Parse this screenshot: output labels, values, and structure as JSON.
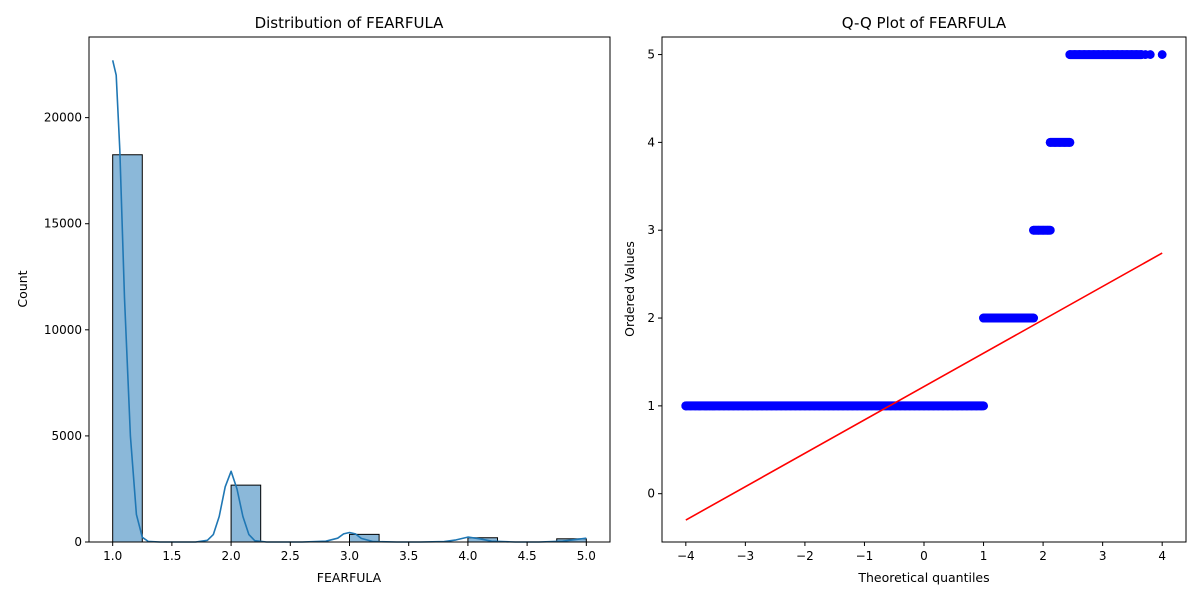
{
  "chart_data": [
    {
      "type": "bar",
      "subtype": "histogram with kde",
      "title": "Distribution of FEARFULA",
      "xlabel": "FEARFULA",
      "ylabel": "Count",
      "xlim": [
        0.8,
        5.2
      ],
      "ylim": [
        0,
        23800
      ],
      "xticks": [
        "1.0",
        "1.5",
        "2.0",
        "2.5",
        "3.0",
        "3.5",
        "4.0",
        "4.5",
        "5.0"
      ],
      "yticks": [
        "0",
        "5000",
        "10000",
        "15000",
        "20000"
      ],
      "bins": [
        {
          "x0": 1.0,
          "x1": 1.25,
          "count": 18250
        },
        {
          "x0": 2.0,
          "x1": 2.25,
          "count": 2680
        },
        {
          "x0": 3.0,
          "x1": 3.25,
          "count": 360
        },
        {
          "x0": 4.0,
          "x1": 4.25,
          "count": 200
        },
        {
          "x0": 4.75,
          "x1": 5.0,
          "count": 150
        }
      ],
      "kde": {
        "x": [
          1.0,
          1.03,
          1.06,
          1.1,
          1.15,
          1.2,
          1.25,
          1.3,
          1.4,
          1.5,
          1.6,
          1.7,
          1.8,
          1.85,
          1.9,
          1.95,
          2.0,
          2.05,
          2.1,
          2.15,
          2.2,
          2.3,
          2.4,
          2.6,
          2.8,
          2.9,
          2.95,
          3.0,
          3.05,
          3.1,
          3.2,
          3.4,
          3.6,
          3.8,
          3.9,
          4.0,
          4.1,
          4.2,
          4.4,
          4.6,
          4.8,
          4.9,
          5.0
        ],
        "y": [
          22700,
          22000,
          18500,
          11500,
          5000,
          1300,
          220,
          30,
          0,
          0,
          0,
          0,
          80,
          350,
          1200,
          2600,
          3330,
          2500,
          1200,
          350,
          60,
          0,
          0,
          0,
          40,
          180,
          380,
          450,
          380,
          170,
          20,
          0,
          0,
          20,
          100,
          230,
          150,
          40,
          0,
          0,
          40,
          110,
          180
        ]
      },
      "colors": {
        "bar": "#8bb8d9",
        "line": "#1f77b4"
      }
    },
    {
      "type": "scatter",
      "title": "Q-Q Plot of FEARFULA",
      "xlabel": "Theoretical quantiles",
      "ylabel": "Ordered Values",
      "xlim": [
        -4.4,
        4.4
      ],
      "ylim": [
        -0.55,
        5.2
      ],
      "xticks": [
        "−4",
        "−3",
        "−2",
        "−1",
        "0",
        "1",
        "2",
        "3",
        "4"
      ],
      "yticks": [
        "0",
        "1",
        "2",
        "3",
        "4",
        "5"
      ],
      "point_groups": [
        {
          "y": 1,
          "x_from": -4.0,
          "x_to": 1.0,
          "isolated_x": [
            -4.0,
            -3.78,
            -3.65,
            -3.55
          ]
        },
        {
          "y": 2,
          "x_from": 1.0,
          "x_to": 1.84
        },
        {
          "y": 3,
          "x_from": 1.84,
          "x_to": 2.12
        },
        {
          "y": 4,
          "x_from": 2.12,
          "x_to": 2.45
        },
        {
          "y": 5,
          "x_from": 2.45,
          "x_to": 3.65,
          "isolated_x": [
            3.72,
            3.8,
            4.0
          ]
        }
      ],
      "fit_line": {
        "x": [
          -4.0,
          4.0
        ],
        "y": [
          -0.3,
          2.74
        ]
      },
      "colors": {
        "points": "#0000ff",
        "line": "#ff0000"
      }
    }
  ]
}
